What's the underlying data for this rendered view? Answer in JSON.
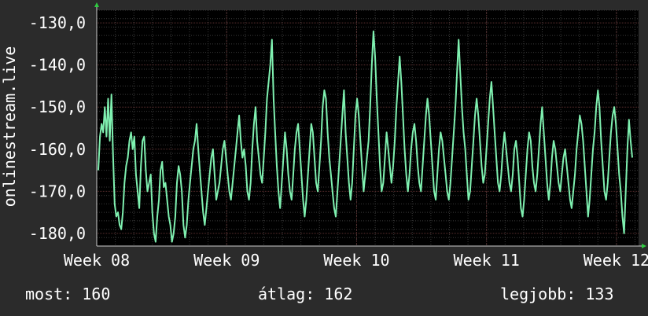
{
  "chart_data": {
    "type": "line",
    "ylabel": "onlinestream.live",
    "ylim": [
      -183,
      -127
    ],
    "y_ticks": [
      -130,
      -140,
      -150,
      -160,
      -170,
      -180
    ],
    "y_tick_labels": [
      "-130,0",
      "-140,0",
      "-150,0",
      "-160,0",
      "-170,0",
      "-180,0"
    ],
    "x_tick_labels": [
      "Week 08",
      "Week 09",
      "Week 10",
      "Week 11",
      "Week 12"
    ],
    "x_range": [
      0,
      4.17
    ],
    "x_ticks": [
      0,
      1,
      2,
      3,
      4
    ],
    "grid": true,
    "colors": {
      "background": "#2b2b2b",
      "plot_bg": "#000000",
      "grid": "#3a3a3a",
      "grid_major": "#5a2f2f",
      "line": "#7ff0b0",
      "axis_arrow": "#2ecc40"
    },
    "series": [
      {
        "values": [
          -165,
          -157,
          -154,
          -156,
          -150,
          -157,
          -148,
          -158,
          -147,
          -161,
          -173,
          -176,
          -175,
          -178,
          -179,
          -175,
          -168,
          -164,
          -162,
          -158,
          -156,
          -160,
          -157,
          -166,
          -170,
          -174,
          -164,
          -158,
          -157,
          -165,
          -170,
          -168,
          -166,
          -175,
          -180,
          -182,
          -176,
          -172,
          -165,
          -163,
          -169,
          -168,
          -172,
          -176,
          -178,
          -182,
          -180,
          -176,
          -168,
          -164,
          -166,
          -170,
          -178,
          -181,
          -178,
          -172,
          -168,
          -164,
          -160,
          -158,
          -154,
          -160,
          -165,
          -170,
          -175,
          -178,
          -174,
          -170,
          -166,
          -162,
          -160,
          -166,
          -172,
          -170,
          -168,
          -164,
          -160,
          -158,
          -162,
          -166,
          -170,
          -172,
          -168,
          -164,
          -160,
          -156,
          -152,
          -158,
          -162,
          -160,
          -164,
          -170,
          -172,
          -168,
          -160,
          -154,
          -150,
          -158,
          -162,
          -166,
          -168,
          -162,
          -156,
          -148,
          -144,
          -140,
          -134,
          -148,
          -156,
          -164,
          -170,
          -174,
          -168,
          -162,
          -156,
          -160,
          -166,
          -170,
          -172,
          -166,
          -160,
          -156,
          -154,
          -160,
          -166,
          -172,
          -176,
          -172,
          -166,
          -160,
          -154,
          -156,
          -162,
          -168,
          -170,
          -164,
          -158,
          -150,
          -146,
          -148,
          -156,
          -162,
          -166,
          -170,
          -174,
          -176,
          -170,
          -164,
          -158,
          -152,
          -146,
          -156,
          -162,
          -168,
          -172,
          -168,
          -160,
          -152,
          -148,
          -152,
          -158,
          -164,
          -170,
          -166,
          -162,
          -158,
          -150,
          -140,
          -132,
          -138,
          -148,
          -156,
          -164,
          -170,
          -168,
          -162,
          -156,
          -160,
          -164,
          -168,
          -164,
          -158,
          -150,
          -144,
          -138,
          -144,
          -152,
          -160,
          -166,
          -170,
          -166,
          -160,
          -156,
          -154,
          -158,
          -164,
          -168,
          -170,
          -164,
          -158,
          -152,
          -148,
          -152,
          -158,
          -164,
          -170,
          -172,
          -166,
          -160,
          -156,
          -158,
          -162,
          -166,
          -170,
          -172,
          -168,
          -162,
          -156,
          -150,
          -142,
          -134,
          -142,
          -150,
          -156,
          -160,
          -166,
          -172,
          -170,
          -164,
          -158,
          -152,
          -148,
          -152,
          -158,
          -164,
          -168,
          -166,
          -160,
          -154,
          -148,
          -144,
          -150,
          -156,
          -162,
          -168,
          -170,
          -166,
          -160,
          -156,
          -160,
          -164,
          -168,
          -170,
          -166,
          -160,
          -158,
          -162,
          -168,
          -174,
          -176,
          -172,
          -166,
          -160,
          -156,
          -158,
          -164,
          -168,
          -170,
          -166,
          -160,
          -154,
          -150,
          -156,
          -162,
          -168,
          -172,
          -168,
          -162,
          -158,
          -160,
          -164,
          -168,
          -170,
          -166,
          -162,
          -160,
          -164,
          -168,
          -172,
          -174,
          -170,
          -166,
          -160,
          -156,
          -152,
          -154,
          -158,
          -164,
          -170,
          -176,
          -172,
          -166,
          -160,
          -156,
          -150,
          -146,
          -150,
          -158,
          -164,
          -170,
          -172,
          -168,
          -162,
          -156,
          -152,
          -150,
          -154,
          -160,
          -166,
          -170,
          -176,
          -180,
          -170,
          -160,
          -153,
          -158,
          -162
        ]
      }
    ]
  },
  "stats": {
    "now": "most: 160",
    "avg": "átlag: 162",
    "best": "legjobb: 133"
  }
}
